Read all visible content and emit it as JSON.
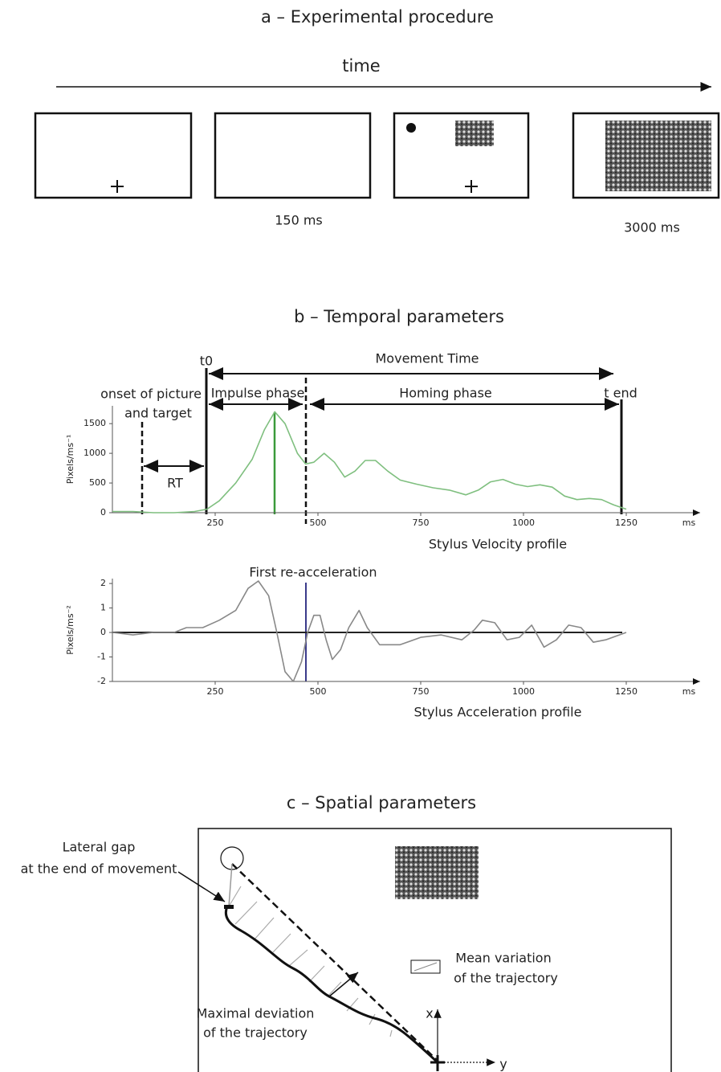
{
  "panel_a": {
    "title": "a – Experimental procedure",
    "time_label": "time",
    "durations": [
      "150 ms",
      "3000 ms"
    ]
  },
  "panel_b": {
    "title": "b – Temporal parameters",
    "annotations": {
      "t0": "t0",
      "movement_time": "Movement Time",
      "t_end": "t end",
      "onset_1": "onset of picture",
      "onset_2": "and target",
      "impulse": "Impulse phase",
      "homing": "Homing phase",
      "rt": "RT",
      "reaccel": "First re-acceleration"
    },
    "velocity": {
      "ylabel": "Pixels/ms⁻¹",
      "caption": "Stylus Velocity profile",
      "xunit": "ms",
      "xlim": [
        0,
        1400
      ],
      "ylim": [
        0,
        1800
      ],
      "xticks": [
        250,
        500,
        750,
        1000,
        1250
      ],
      "yticks": [
        0,
        500,
        1000,
        1500
      ],
      "x": [
        0,
        50,
        100,
        150,
        200,
        230,
        260,
        300,
        340,
        370,
        395,
        420,
        450,
        470,
        490,
        515,
        540,
        565,
        590,
        615,
        640,
        670,
        700,
        740,
        780,
        820,
        860,
        890,
        920,
        950,
        980,
        1010,
        1040,
        1070,
        1100,
        1130,
        1160,
        1190,
        1220,
        1250
      ],
      "values": [
        20,
        20,
        0,
        0,
        20,
        60,
        200,
        500,
        900,
        1400,
        1700,
        1500,
        1000,
        820,
        850,
        1000,
        850,
        600,
        700,
        880,
        880,
        700,
        550,
        480,
        420,
        380,
        300,
        380,
        520,
        560,
        480,
        440,
        470,
        430,
        280,
        220,
        240,
        220,
        130,
        60
      ]
    },
    "acceleration": {
      "ylabel": "Pixels/ms⁻²",
      "caption": "Stylus Acceleration profile",
      "xunit": "ms",
      "xlim": [
        0,
        1400
      ],
      "ylim": [
        -2,
        2.2
      ],
      "xticks": [
        250,
        500,
        750,
        1000,
        1250
      ],
      "yticks": [
        -2,
        -1,
        0,
        1,
        2
      ],
      "x": [
        0,
        50,
        100,
        150,
        180,
        220,
        260,
        300,
        330,
        355,
        380,
        400,
        420,
        440,
        460,
        475,
        490,
        505,
        520,
        535,
        555,
        575,
        600,
        620,
        650,
        700,
        750,
        800,
        850,
        880,
        900,
        930,
        960,
        990,
        1020,
        1050,
        1080,
        1110,
        1140,
        1170,
        1200,
        1250
      ],
      "values": [
        0,
        -0.1,
        0,
        0,
        0.2,
        0.2,
        0.5,
        0.9,
        1.8,
        2.1,
        1.5,
        0,
        -1.6,
        -2,
        -1.2,
        0,
        0.7,
        0.7,
        -0.3,
        -1.1,
        -0.7,
        0.2,
        0.9,
        0.2,
        -0.5,
        -0.5,
        -0.2,
        -0.1,
        -0.3,
        0.1,
        0.5,
        0.4,
        -0.3,
        -0.2,
        0.3,
        -0.6,
        -0.3,
        0.3,
        0.2,
        -0.4,
        -0.3,
        0
      ]
    }
  },
  "panel_c": {
    "title": "c – Spatial parameters",
    "lateral_1": "Lateral gap",
    "lateral_2": "at the end of movement",
    "mean_1": "Mean variation",
    "mean_2": "of the trajectory",
    "max_1": "Maximal deviation",
    "max_2": "of the trajectory",
    "axis_x": "x",
    "axis_y": "y"
  }
}
